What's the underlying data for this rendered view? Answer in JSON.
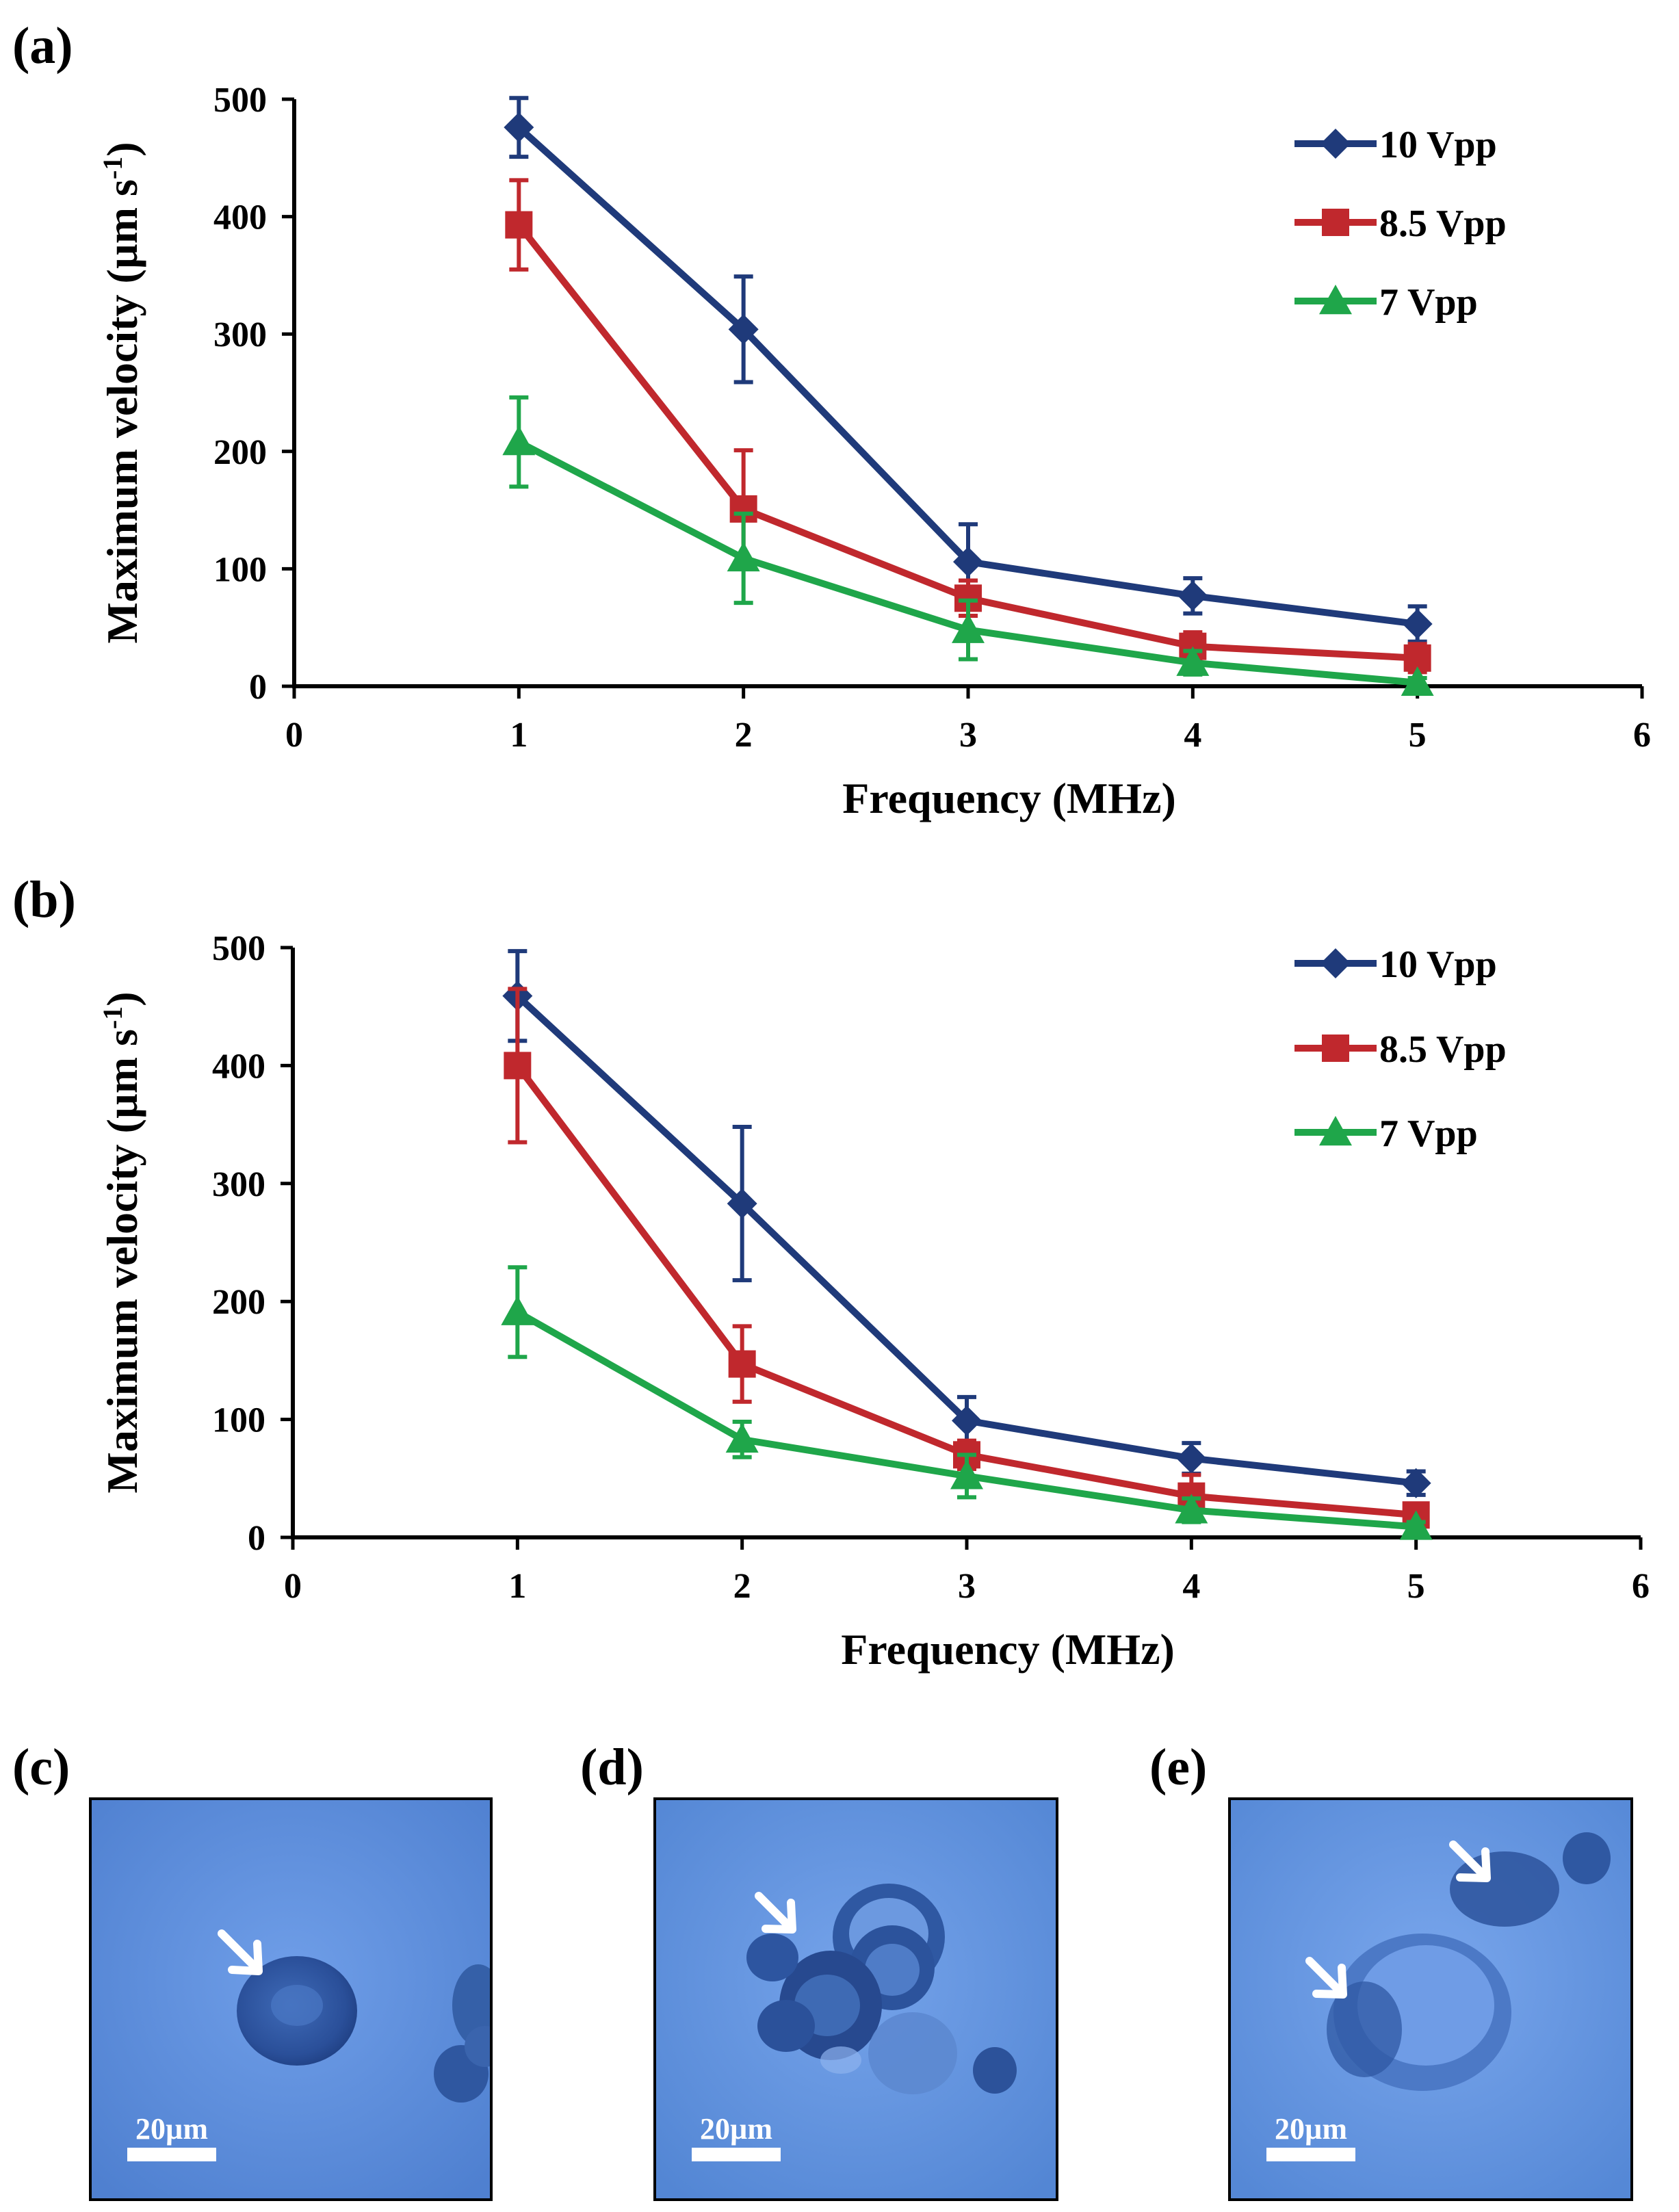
{
  "chart_data": [
    {
      "type": "line",
      "panel_label": "(a)",
      "xlabel": "Frequency (MHz)",
      "ylabel_main": "Maximum velocity (µm s",
      "ylabel_sup": "-1",
      "ylabel_end": ")",
      "xlim": [
        0,
        6
      ],
      "ylim": [
        0,
        500
      ],
      "xticks": [
        "0",
        "1",
        "2",
        "3",
        "4",
        "5",
        "6"
      ],
      "yticks": [
        "0",
        "100",
        "200",
        "300",
        "400",
        "500"
      ],
      "x": [
        1,
        2,
        3,
        4,
        5
      ],
      "series": [
        {
          "name": "10 Vpp",
          "color": "#1f3a7a",
          "marker": "diamond",
          "values": [
            476,
            304,
            106,
            77,
            53
          ],
          "errors": [
            25,
            45,
            32,
            15,
            15
          ]
        },
        {
          "name": "8.5 Vpp",
          "color": "#c0282d",
          "marker": "square",
          "values": [
            393,
            151,
            75,
            34,
            24
          ],
          "errors": [
            38,
            50,
            15,
            12,
            12
          ]
        },
        {
          "name": "7 Vpp",
          "color": "#1fa64a",
          "marker": "triangle",
          "values": [
            208,
            109,
            48,
            20,
            3
          ],
          "errors": [
            38,
            38,
            25,
            10,
            4
          ]
        }
      ]
    },
    {
      "type": "line",
      "panel_label": "(b)",
      "xlabel": "Frequency (MHz)",
      "ylabel_main": "Maximum velocity (µm s",
      "ylabel_sup": "-1",
      "ylabel_end": ")",
      "xlim": [
        0,
        6
      ],
      "ylim": [
        0,
        500
      ],
      "xticks": [
        "0",
        "1",
        "2",
        "3",
        "4",
        "5",
        "6"
      ],
      "yticks": [
        "0",
        "100",
        "200",
        "300",
        "400",
        "500"
      ],
      "x": [
        1,
        2,
        3,
        4,
        5
      ],
      "series": [
        {
          "name": "10 Vpp",
          "color": "#1f3a7a",
          "marker": "diamond",
          "values": [
            459,
            283,
            99,
            67,
            46
          ],
          "errors": [
            38,
            65,
            20,
            13,
            10
          ]
        },
        {
          "name": "8.5 Vpp",
          "color": "#c0282d",
          "marker": "square",
          "values": [
            400,
            147,
            70,
            35,
            19
          ],
          "errors": [
            65,
            32,
            12,
            18,
            8
          ]
        },
        {
          "name": "7 Vpp",
          "color": "#1fa64a",
          "marker": "triangle",
          "values": [
            191,
            83,
            52,
            23,
            9
          ],
          "errors": [
            38,
            15,
            18,
            10,
            4
          ]
        }
      ]
    }
  ],
  "micrographs": [
    {
      "label": "(c)",
      "scale_text": "20µm"
    },
    {
      "label": "(d)",
      "scale_text": "20µm"
    },
    {
      "label": "(e)",
      "scale_text": "20µm"
    }
  ]
}
